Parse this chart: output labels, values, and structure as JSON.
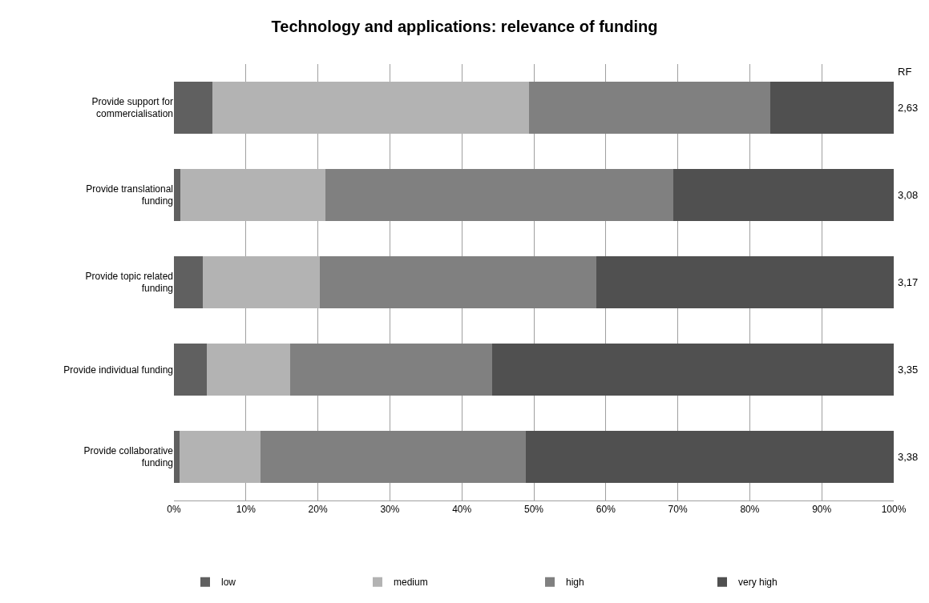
{
  "chart_data": {
    "type": "bar",
    "orientation": "horizontal",
    "stacked": true,
    "title": "Technology and applications: relevance of funding",
    "categories": [
      "Provide support for commercialisation",
      "Provide translational funding",
      "Provide topic related funding",
      "Provide individual funding",
      "Provide collaborative funding"
    ],
    "series": [
      {
        "name": "low",
        "color": "#606060",
        "values": [
          5.4,
          0.9,
          4.0,
          4.6,
          0.8
        ]
      },
      {
        "name": "medium",
        "color": "#b3b3b3",
        "values": [
          43.9,
          20.2,
          16.3,
          11.6,
          11.2
        ]
      },
      {
        "name": "high",
        "color": "#808080",
        "values": [
          33.6,
          48.3,
          38.4,
          28.0,
          36.9
        ]
      },
      {
        "name": "very high",
        "color": "#505050",
        "values": [
          17.1,
          30.6,
          41.3,
          55.8,
          51.1
        ]
      }
    ],
    "xlim": [
      0,
      100
    ],
    "xticks": [
      {
        "value": 0,
        "label": "0%"
      },
      {
        "value": 10,
        "label": "10%"
      },
      {
        "value": 20,
        "label": "20%"
      },
      {
        "value": 30,
        "label": "30%"
      },
      {
        "value": 40,
        "label": "40%"
      },
      {
        "value": 50,
        "label": "50%"
      },
      {
        "value": 60,
        "label": "60%"
      },
      {
        "value": 70,
        "label": "70%"
      },
      {
        "value": 80,
        "label": "80%"
      },
      {
        "value": 90,
        "label": "90%"
      },
      {
        "value": 100,
        "label": "100%"
      }
    ],
    "grid": "x",
    "legend": "bottom",
    "annotations": [
      "RF",
      "2,63",
      "3,08",
      "3,17",
      "3,35",
      "3,38"
    ]
  }
}
